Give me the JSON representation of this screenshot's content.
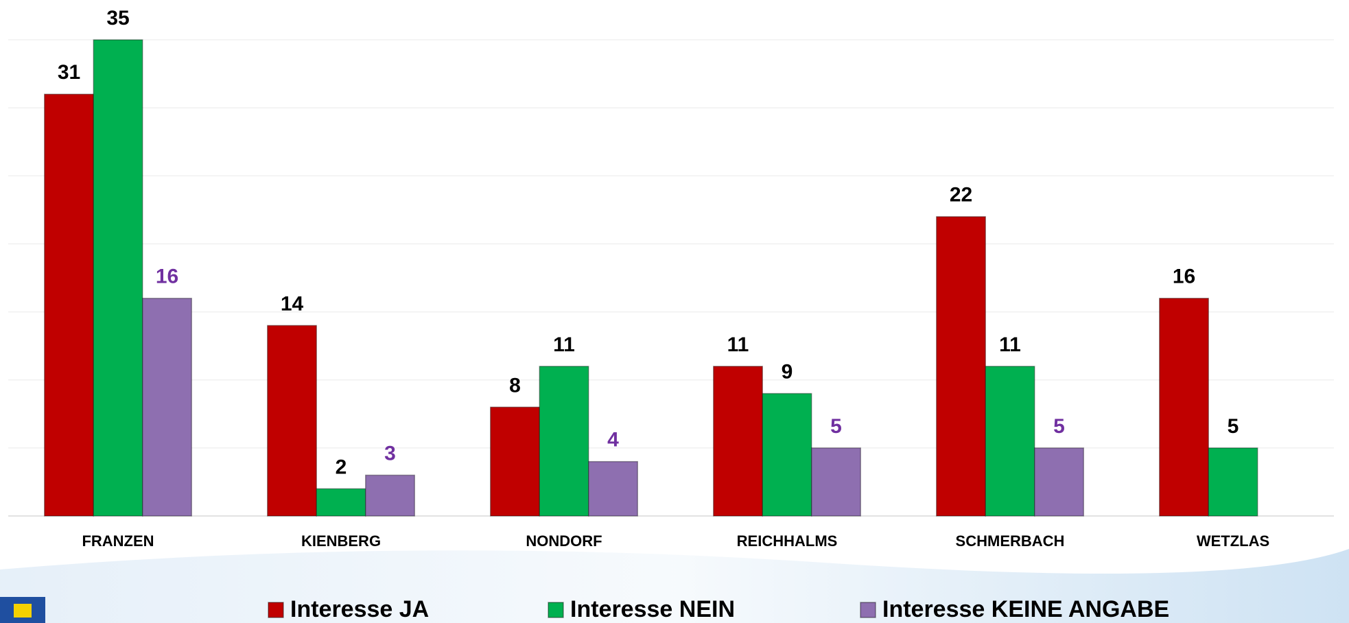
{
  "chart_data": {
    "type": "bar",
    "categories": [
      "FRANZEN",
      "KIENBERG",
      "NONDORF",
      "REICHHALMS",
      "SCHMERBACH",
      "WETZLAS"
    ],
    "series": [
      {
        "name": "Interesse JA",
        "color": "#c00000",
        "values": [
          31,
          14,
          8,
          11,
          22,
          16
        ]
      },
      {
        "name": "Interesse NEIN",
        "color": "#00b050",
        "values": [
          35,
          2,
          11,
          9,
          11,
          5
        ]
      },
      {
        "name": "Interesse KEINE ANGABE",
        "color": "#8e6fb0",
        "values": [
          16,
          3,
          4,
          5,
          5,
          null
        ]
      }
    ],
    "ylim": [
      0,
      35
    ],
    "yticks": [
      0,
      5,
      10,
      15,
      20,
      25,
      30,
      35
    ],
    "grid": true,
    "legend": "bottom"
  }
}
